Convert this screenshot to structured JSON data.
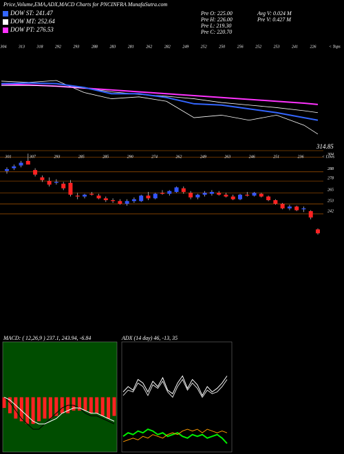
{
  "header": {
    "title": "Price,Volume,EMA,ADX,MACD Charts for PNCINFRA MunafaSutra.com",
    "stats": [
      "Pre  O: 225.00",
      "Pre  H: 226.00",
      "Pre  L: 219.30",
      "Pre  C: 220.70",
      "Avg  V: 0.024  M",
      "Pre  V: 0.427  M"
    ]
  },
  "chart_data": [
    {
      "type": "line",
      "title": null,
      "x": [
        0,
        4,
        8,
        12,
        16,
        20,
        24,
        28,
        32,
        36,
        40,
        44,
        46
      ],
      "xlim": [
        0,
        46
      ],
      "ylim": [
        205,
        325
      ],
      "series": [
        {
          "name": "DOW PT: 276.53",
          "color": "#ff33ff",
          "values": [
            295,
            294,
            292,
            289,
            286,
            283,
            280,
            277,
            274,
            271,
            268,
            265,
            263
          ]
        },
        {
          "name": "DOW MT: 252.64",
          "color": "#ffffff",
          "values": [
            293,
            293,
            292,
            289,
            283,
            279,
            276,
            272,
            266,
            262,
            258,
            253,
            250
          ]
        },
        {
          "name": "DOW ST: 241.47",
          "color": "#3366ff",
          "values": [
            296,
            297,
            296,
            290,
            280,
            280,
            274,
            264,
            262,
            256,
            250,
            242,
            238
          ]
        }
      ],
      "price_values": [
        300,
        298,
        301,
        282,
        272,
        275,
        268,
        242,
        246,
        238,
        246,
        230,
        216
      ],
      "price_color": "#ffffff",
      "tops": [
        304,
        313,
        318,
        292,
        293,
        288,
        283,
        281,
        262,
        282,
        249,
        252,
        250,
        256,
        252,
        253,
        241,
        226
      ],
      "tops_note": "< Tops",
      "last_label": "314.85"
    },
    {
      "type": "candlestick",
      "open": [
        289,
        292,
        295,
        300,
        290,
        282,
        278,
        276,
        275,
        276,
        262,
        261,
        264,
        262,
        259,
        257,
        256,
        253,
        256,
        256,
        262,
        259,
        265,
        264,
        266,
        270,
        265,
        260,
        263,
        264,
        265,
        263,
        261,
        258,
        263,
        262,
        264,
        261,
        257,
        253,
        248,
        250,
        247,
        245,
        225
      ],
      "high": [
        293,
        296,
        300,
        308,
        292,
        284,
        282,
        280,
        277,
        279,
        265,
        264,
        266,
        264,
        261,
        259,
        258,
        258,
        260,
        263,
        266,
        265,
        268,
        268,
        272,
        272,
        267,
        264,
        267,
        268,
        267,
        265,
        263,
        264,
        266,
        266,
        265,
        262,
        258,
        254,
        252,
        251,
        250,
        246,
        226
      ],
      "low": [
        286,
        290,
        293,
        297,
        283,
        277,
        272,
        274,
        268,
        261,
        258,
        259,
        262,
        258,
        255,
        254,
        252,
        251,
        254,
        255,
        257,
        258,
        263,
        262,
        265,
        264,
        258,
        258,
        261,
        262,
        262,
        260,
        257,
        257,
        261,
        261,
        260,
        256,
        252,
        247,
        246,
        245,
        244,
        236,
        219.3
      ],
      "close": [
        291,
        294,
        298,
        296,
        285,
        279,
        274,
        277,
        270,
        263,
        261,
        263,
        263,
        259,
        257,
        256,
        253,
        256,
        258,
        262,
        259,
        264,
        264,
        267,
        271,
        266,
        260,
        263,
        265,
        266,
        263,
        261,
        258,
        263,
        262,
        265,
        261,
        257,
        253,
        248,
        250,
        246,
        248,
        238,
        220.7
      ],
      "up_color": "#3355ff",
      "down_color": "#ff2222",
      "ylim": [
        205,
        312
      ],
      "yticks": [
        304,
        288,
        278,
        265,
        253,
        242
      ],
      "grid_color": "#cc6600",
      "lows": [
        301,
        307,
        293,
        285,
        285,
        290,
        274,
        262,
        249,
        263,
        246,
        251,
        236
      ],
      "lows_note": "< Lows"
    },
    {
      "type": "macd",
      "title": "MACD: ( 12,26,9 ) 237.1, 243.94, -6.84",
      "ylim": [
        -20,
        20
      ],
      "histogram": [
        -4,
        -6,
        -8,
        -9,
        -10,
        -10,
        -9,
        -8,
        -8,
        -7,
        -6,
        -6,
        -5,
        -5,
        -5,
        -6,
        -6,
        -7,
        -8,
        -7
      ],
      "hist_color": "#ff2222",
      "series": [
        {
          "color": "#000000",
          "values": [
            0,
            -2,
            -5,
            -8,
            -10,
            -12,
            -12,
            -10,
            -8,
            -6,
            -4,
            -3,
            -3,
            -4,
            -6,
            -7,
            -7,
            -8,
            -9,
            -10
          ]
        },
        {
          "color": "#ffffff",
          "values": [
            0,
            -1,
            -3,
            -5,
            -7,
            -9,
            -10,
            -10,
            -9,
            -8,
            -6,
            -5,
            -4,
            -4,
            -5,
            -6,
            -6,
            -7,
            -8,
            -9
          ]
        }
      ]
    },
    {
      "type": "adx",
      "title": "ADX    (14  day) 46, -13, 35",
      "ylim": [
        0,
        60
      ],
      "series": [
        {
          "color": "#ffffff",
          "values": [
            33,
            36,
            34,
            40,
            38,
            33,
            39,
            36,
            41,
            34,
            32,
            38,
            42,
            35,
            40,
            37,
            31,
            36,
            33,
            35,
            38,
            42
          ]
        },
        {
          "color": "#dddddd",
          "values": [
            31,
            34,
            33,
            38,
            36,
            31,
            37,
            35,
            39,
            33,
            30,
            36,
            40,
            34,
            38,
            35,
            30,
            34,
            32,
            33,
            36,
            40
          ]
        },
        {
          "color": "#00ee00",
          "values": [
            8,
            10,
            9,
            11,
            10,
            12,
            11,
            9,
            10,
            8,
            9,
            10,
            8,
            7,
            9,
            8,
            9,
            7,
            8,
            9,
            7,
            4
          ]
        },
        {
          "color": "#ff9900",
          "values": [
            5,
            6,
            7,
            6,
            8,
            7,
            9,
            8,
            7,
            9,
            10,
            9,
            11,
            12,
            11,
            12,
            10,
            12,
            11,
            10,
            11,
            10
          ]
        }
      ]
    }
  ]
}
